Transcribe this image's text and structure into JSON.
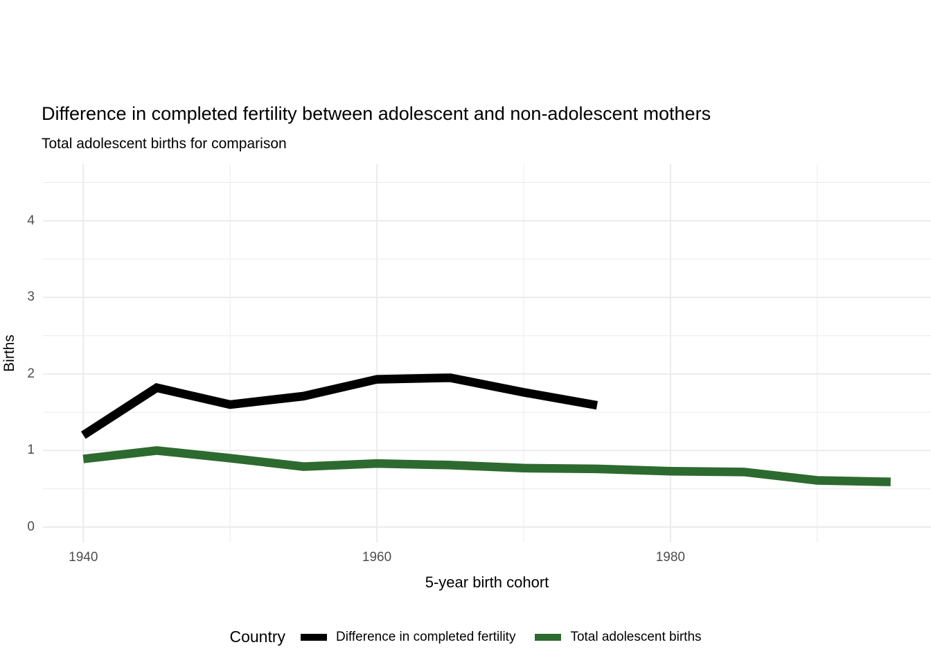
{
  "colors": {
    "background": "#ffffff",
    "grid": "#ebebeb",
    "tick_label": "#4d4d4d",
    "text": "#000000",
    "series_black": "#000000",
    "series_green": "#2d6a2f"
  },
  "chart_data": {
    "type": "line",
    "title": "Difference in completed fertility between adolescent and non-adolescent mothers",
    "subtitle": "Total adolescent births for comparison",
    "xlabel": "5-year birth cohort",
    "ylabel": "Births",
    "legend_title": "Country",
    "x_ticks": [
      1940,
      1960,
      1980
    ],
    "x_minor_ticks": [
      1950,
      1970,
      1990
    ],
    "y_ticks": [
      0,
      1,
      2,
      3,
      4
    ],
    "y_minor_ticks": [
      0.5,
      1.5,
      2.5,
      3.5,
      4.5
    ],
    "xlim": [
      1937.25,
      1997.75
    ],
    "ylim": [
      -0.2,
      4.74
    ],
    "grid": true,
    "legend_position": "bottom",
    "series": [
      {
        "name": "Difference in completed fertility",
        "color": "#000000",
        "x": [
          1940,
          1945,
          1950,
          1955,
          1960,
          1965,
          1970,
          1975
        ],
        "values": [
          1.2,
          1.82,
          1.6,
          1.71,
          1.93,
          1.95,
          1.76,
          1.59
        ]
      },
      {
        "name": "Total adolescent births",
        "color": "#2d6a2f",
        "x": [
          1940,
          1945,
          1950,
          1955,
          1960,
          1965,
          1970,
          1975,
          1980,
          1985,
          1990,
          1995
        ],
        "values": [
          0.89,
          1.0,
          0.9,
          0.79,
          0.83,
          0.81,
          0.77,
          0.76,
          0.73,
          0.72,
          0.61,
          0.59
        ]
      }
    ]
  }
}
